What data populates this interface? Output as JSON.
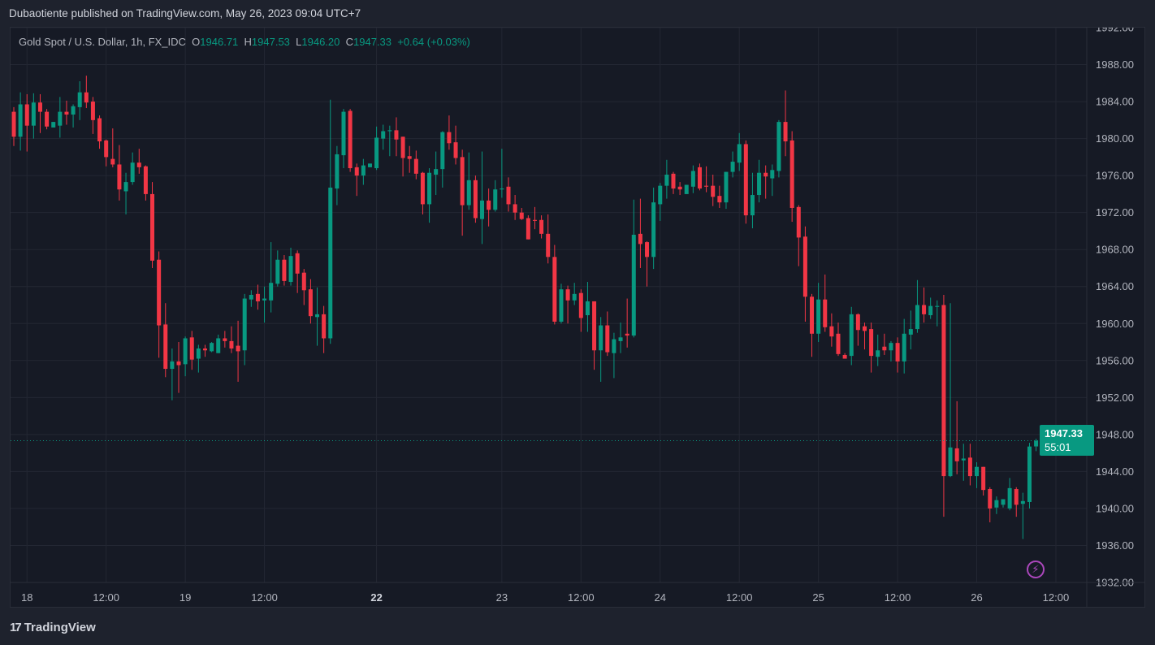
{
  "publication": "Dubaotiente published on TradingView.com, May 26, 2023 09:04 UTC+7",
  "legend": {
    "symbol": "Gold Spot / U.S. Dollar, 1h, FX_IDC",
    "o_label": "O",
    "o": "1946.71",
    "h_label": "H",
    "h": "1947.53",
    "l_label": "L",
    "l": "1946.20",
    "c_label": "C",
    "c": "1947.33",
    "change": "+0.64 (+0.03%)"
  },
  "last_price": {
    "price": "1947.33",
    "countdown": "55:01",
    "value": 1947.33
  },
  "brand": {
    "name": "TradingView",
    "mark": "17"
  },
  "colors": {
    "up": "#089981",
    "down": "#f23645",
    "grid": "#232733",
    "axis_text": "#b2b5be",
    "alert": "#ab47bc"
  },
  "icons": {
    "alert": "lightning-icon",
    "logo": "tradingview-logo-icon"
  },
  "chart_data": {
    "type": "candlestick",
    "title": "Gold Spot / U.S. Dollar, 1h, FX_IDC",
    "ylim": [
      1932,
      1992
    ],
    "y_ticks": [
      "1932.00",
      "1936.00",
      "1940.00",
      "1944.00",
      "1948.00",
      "1952.00",
      "1956.00",
      "1960.00",
      "1964.00",
      "1968.00",
      "1972.00",
      "1976.00",
      "1980.00",
      "1984.00",
      "1988.00",
      "1992.00"
    ],
    "x_ticks": [
      {
        "label": "18",
        "index": 2,
        "bold": false
      },
      {
        "label": "12:00",
        "index": 14,
        "bold": false
      },
      {
        "label": "19",
        "index": 26,
        "bold": false
      },
      {
        "label": "12:00",
        "index": 38,
        "bold": false
      },
      {
        "label": "22",
        "index": 55,
        "bold": true
      },
      {
        "label": "23",
        "index": 74,
        "bold": false
      },
      {
        "label": "12:00",
        "index": 86,
        "bold": false
      },
      {
        "label": "24",
        "index": 98,
        "bold": false
      },
      {
        "label": "12:00",
        "index": 110,
        "bold": false
      },
      {
        "label": "25",
        "index": 122,
        "bold": false
      },
      {
        "label": "12:00",
        "index": 134,
        "bold": false
      },
      {
        "label": "26",
        "index": 146,
        "bold": false
      },
      {
        "label": "12:00",
        "index": 158,
        "bold": false
      }
    ],
    "grid": true,
    "ohlc": [
      [
        1982.9,
        1983.4,
        1979.2,
        1980.2
      ],
      [
        1980.2,
        1985,
        1978.7,
        1983.7
      ],
      [
        1983.7,
        1984.8,
        1978.6,
        1981.4
      ],
      [
        1981.4,
        1984.9,
        1980,
        1983.9
      ],
      [
        1983.9,
        1984.8,
        1980.6,
        1982.9
      ],
      [
        1982.9,
        1983.2,
        1981,
        1981.3
      ],
      [
        1981.2,
        1981.8,
        1981.2,
        1981.8
      ],
      [
        1981.4,
        1984.5,
        1980.1,
        1982.9
      ],
      [
        1982.9,
        1984.1,
        1981.5,
        1982.6
      ],
      [
        1982.6,
        1983.7,
        1981.2,
        1983.5
      ],
      [
        1983.4,
        1986.2,
        1982,
        1985
      ],
      [
        1985,
        1986.8,
        1983.3,
        1983.9
      ],
      [
        1984,
        1984.5,
        1980.5,
        1982
      ],
      [
        1982.2,
        1982.5,
        1978.9,
        1979.7
      ],
      [
        1979.8,
        1979.9,
        1977,
        1978
      ],
      [
        1977.8,
        1981.1,
        1976.9,
        1977.2
      ],
      [
        1977.2,
        1979.3,
        1973.3,
        1974.5
      ],
      [
        1974.3,
        1976.3,
        1971.8,
        1975.3
      ],
      [
        1975.3,
        1978.5,
        1975,
        1977.4
      ],
      [
        1977.4,
        1978.9,
        1976.2,
        1976.9
      ],
      [
        1977,
        1977.1,
        1973.3,
        1974
      ],
      [
        1974,
        1975.3,
        1966,
        1966.8
      ],
      [
        1966.9,
        1967.8,
        1956.3,
        1959.8
      ],
      [
        1959.9,
        1962.2,
        1954.2,
        1955.1
      ],
      [
        1955.1,
        1957.3,
        1951.7,
        1955.9
      ],
      [
        1955.9,
        1958,
        1952.5,
        1955.5
      ],
      [
        1955.6,
        1958.6,
        1954.3,
        1958.4
      ],
      [
        1958.5,
        1959.2,
        1955,
        1956.1
      ],
      [
        1956.2,
        1957.7,
        1954.7,
        1957.3
      ],
      [
        1957.3,
        1957.7,
        1956.4,
        1957.1
      ],
      [
        1957,
        1958,
        1956.9,
        1957.9
      ],
      [
        1956.8,
        1958.8,
        1956.8,
        1958.4
      ],
      [
        1958.4,
        1959.2,
        1957.4,
        1958.1
      ],
      [
        1958.1,
        1959.7,
        1956.8,
        1957.3
      ],
      [
        1957.6,
        1960.3,
        1953.7,
        1957
      ],
      [
        1957.1,
        1963.2,
        1955.5,
        1962.7
      ],
      [
        1962.6,
        1963.6,
        1961.8,
        1963.1
      ],
      [
        1963.2,
        1964.2,
        1961.5,
        1962.4
      ],
      [
        1962.5,
        1964,
        1960.1,
        1962.7
      ],
      [
        1962.5,
        1968.8,
        1961.2,
        1964.4
      ],
      [
        1964.3,
        1967.9,
        1964,
        1966.9
      ],
      [
        1966.9,
        1967.4,
        1964.1,
        1964.6
      ],
      [
        1964.5,
        1968.2,
        1964.1,
        1967.3
      ],
      [
        1967.6,
        1967.9,
        1963.3,
        1965.4
      ],
      [
        1965.5,
        1965.9,
        1962,
        1963.6
      ],
      [
        1963.7,
        1964.8,
        1960,
        1960.8
      ],
      [
        1960.7,
        1963.9,
        1957.6,
        1961
      ],
      [
        1961,
        1961.9,
        1956.8,
        1958.4
      ],
      [
        1958.4,
        1984.2,
        1957.8,
        1974.7
      ],
      [
        1974.6,
        1979.2,
        1972.8,
        1978.3
      ],
      [
        1978.2,
        1983.2,
        1976.8,
        1982.9
      ],
      [
        1983,
        1983.2,
        1976.4,
        1976.8
      ],
      [
        1976.9,
        1977.3,
        1973.8,
        1976
      ],
      [
        1976,
        1977.8,
        1975,
        1977.1
      ],
      [
        1976.9,
        1977.3,
        1976.9,
        1977.3
      ],
      [
        1976.8,
        1981.3,
        1976.6,
        1980.1
      ],
      [
        1980,
        1981.5,
        1978.8,
        1980.8
      ],
      [
        1980.8,
        1981.4,
        1978.1,
        1980.9
      ],
      [
        1980.9,
        1982.3,
        1978.1,
        1979.9
      ],
      [
        1980.2,
        1980.2,
        1975.9,
        1977.9
      ],
      [
        1978.1,
        1979.2,
        1976.3,
        1977.8
      ],
      [
        1977.8,
        1978.7,
        1975.6,
        1976.2
      ],
      [
        1976.3,
        1976.4,
        1971.8,
        1972.9
      ],
      [
        1972.9,
        1976.8,
        1970.9,
        1976.3
      ],
      [
        1976.1,
        1978.6,
        1973.9,
        1976.7
      ],
      [
        1976.7,
        1980.8,
        1974.7,
        1980.7
      ],
      [
        1980.7,
        1982.5,
        1978.8,
        1979.5
      ],
      [
        1979.6,
        1981.4,
        1977.2,
        1977.9
      ],
      [
        1978,
        1978.8,
        1969.5,
        1972.8
      ],
      [
        1972.8,
        1978.5,
        1972.3,
        1975.5
      ],
      [
        1975.5,
        1976,
        1970.9,
        1971.4
      ],
      [
        1971.3,
        1978.6,
        1968.6,
        1973.3
      ],
      [
        1973.3,
        1974.6,
        1970.5,
        1972.3
      ],
      [
        1972.3,
        1975.5,
        1972.1,
        1974.5
      ],
      [
        1974.5,
        1978.9,
        1973.6,
        1974.6
      ],
      [
        1974.8,
        1975.8,
        1972.1,
        1972.9
      ],
      [
        1972.9,
        1973.9,
        1971.2,
        1972
      ],
      [
        1972,
        1972.5,
        1971.2,
        1971.3
      ],
      [
        1971.4,
        1971.7,
        1969.1,
        1969.1
      ],
      [
        1971.2,
        1972.6,
        1970.2,
        1971.1
      ],
      [
        1971.2,
        1971.7,
        1969.2,
        1969.7
      ],
      [
        1969.7,
        1971.8,
        1966.5,
        1967.2
      ],
      [
        1967.2,
        1968.5,
        1959.9,
        1960.2
      ],
      [
        1960.2,
        1964.3,
        1960,
        1963.7
      ],
      [
        1963.7,
        1964.1,
        1960,
        1962.5
      ],
      [
        1962.5,
        1964.4,
        1962,
        1963.2
      ],
      [
        1963.3,
        1963.7,
        1959.1,
        1960.6
      ],
      [
        1960.9,
        1964.5,
        1959.1,
        1962.4
      ],
      [
        1962.4,
        1962.4,
        1955,
        1957.1
      ],
      [
        1957.1,
        1960.7,
        1953.7,
        1959.8
      ],
      [
        1959.8,
        1961.3,
        1956.5,
        1956.9
      ],
      [
        1956.8,
        1959,
        1954.1,
        1958.3
      ],
      [
        1958.1,
        1960.1,
        1956.8,
        1958.5
      ],
      [
        1958.9,
        1962.7,
        1957.4,
        1958.7
      ],
      [
        1958.7,
        1973.4,
        1958.5,
        1969.6
      ],
      [
        1969.7,
        1973.5,
        1966,
        1968.6
      ],
      [
        1968.8,
        1968.9,
        1964,
        1967.2
      ],
      [
        1967.2,
        1974.7,
        1965.9,
        1973.1
      ],
      [
        1972.9,
        1975.2,
        1971.1,
        1974.9
      ],
      [
        1974.9,
        1977.7,
        1973.5,
        1976.1
      ],
      [
        1976.2,
        1976.4,
        1974,
        1974.6
      ],
      [
        1974.8,
        1975.3,
        1973.9,
        1974.5
      ],
      [
        1974,
        1975,
        1974,
        1975
      ],
      [
        1974.8,
        1977.1,
        1974.1,
        1976.5
      ],
      [
        1976.9,
        1977.3,
        1974.4,
        1974.6
      ],
      [
        1974.9,
        1977,
        1974.2,
        1974.8
      ],
      [
        1974.9,
        1976.1,
        1972.7,
        1973.7
      ],
      [
        1973.8,
        1974.9,
        1972.5,
        1973.1
      ],
      [
        1973.1,
        1976.4,
        1972.4,
        1976.4
      ],
      [
        1976.4,
        1978.6,
        1975.8,
        1977.5
      ],
      [
        1977.4,
        1980.6,
        1976.5,
        1979.4
      ],
      [
        1979.4,
        1979.8,
        1970.8,
        1971.7
      ],
      [
        1971.7,
        1976.3,
        1970.3,
        1973.9
      ],
      [
        1973.9,
        1977.7,
        1973.1,
        1976.3
      ],
      [
        1976.3,
        1977.1,
        1973.5,
        1975.9
      ],
      [
        1975.7,
        1977.2,
        1973.8,
        1976.6
      ],
      [
        1976.5,
        1982,
        1975.8,
        1981.8
      ],
      [
        1981.8,
        1985.2,
        1978.1,
        1979.7
      ],
      [
        1979.8,
        1980.8,
        1971,
        1972.5
      ],
      [
        1972.6,
        1972.8,
        1966.2,
        1969.3
      ],
      [
        1969.4,
        1970.5,
        1960.2,
        1962.9
      ],
      [
        1962.9,
        1963.2,
        1956.4,
        1958.9
      ],
      [
        1958.9,
        1964.4,
        1958,
        1962.6
      ],
      [
        1962.6,
        1965.3,
        1959.1,
        1959.6
      ],
      [
        1959.7,
        1961.1,
        1957.5,
        1958.6
      ],
      [
        1958.9,
        1960.1,
        1956.5,
        1956.7
      ],
      [
        1956.6,
        1956.8,
        1956.2,
        1956.2
      ],
      [
        1956.5,
        1961.8,
        1955.5,
        1961
      ],
      [
        1961,
        1961.1,
        1957.6,
        1959.3
      ],
      [
        1959.7,
        1960.1,
        1957.2,
        1959.2
      ],
      [
        1959.4,
        1960.1,
        1954.7,
        1956.5
      ],
      [
        1956.4,
        1958.8,
        1955.4,
        1957.1
      ],
      [
        1957.5,
        1958.9,
        1956.6,
        1957.1
      ],
      [
        1957.1,
        1958.1,
        1955.9,
        1957.9
      ],
      [
        1957.9,
        1958.5,
        1954.7,
        1955.9
      ],
      [
        1955.9,
        1960.5,
        1954.6,
        1958.9
      ],
      [
        1958.8,
        1961.4,
        1957.2,
        1959.4
      ],
      [
        1959.4,
        1964.7,
        1959,
        1962
      ],
      [
        1962,
        1963.9,
        1960.1,
        1961
      ],
      [
        1960.9,
        1962.8,
        1960.5,
        1961.9
      ],
      [
        1961.8,
        1962.5,
        1959.7,
        1961.9
      ],
      [
        1962,
        1963.1,
        1939.1,
        1943.5
      ],
      [
        1943.5,
        1962.2,
        1943.4,
        1946.6
      ],
      [
        1946.5,
        1951.6,
        1943.7,
        1945.1
      ],
      [
        1945.2,
        1947,
        1943,
        1945.4
      ],
      [
        1945.5,
        1947,
        1942.5,
        1943.5
      ],
      [
        1943.5,
        1945,
        1942.2,
        1944.5
      ],
      [
        1944.5,
        1944.5,
        1941.4,
        1942
      ],
      [
        1942.1,
        1942.3,
        1938.5,
        1940
      ],
      [
        1940.1,
        1941.3,
        1939.4,
        1940.9
      ],
      [
        1940.4,
        1941,
        1940.1,
        1941
      ],
      [
        1940,
        1943.3,
        1939.8,
        1942.2
      ],
      [
        1942.1,
        1942.3,
        1939.1,
        1940.4
      ],
      [
        1940.5,
        1941.7,
        1936.7,
        1940.8
      ],
      [
        1940.7,
        1947.1,
        1940,
        1946.7
      ],
      [
        1946.71,
        1947.53,
        1946.2,
        1947.33
      ]
    ]
  }
}
